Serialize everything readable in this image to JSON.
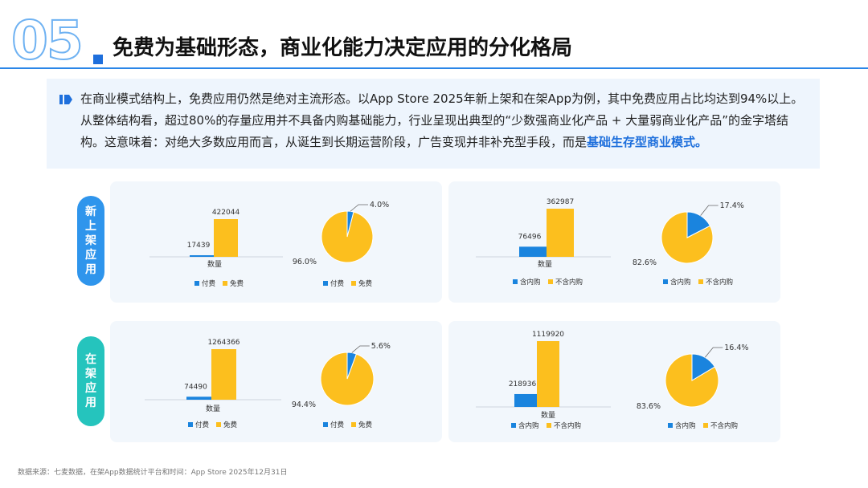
{
  "header": {
    "number": "05",
    "title": "免费为基础形态，商业化能力决定应用的分化格局"
  },
  "intro": {
    "part1": "在商业模式结构上，免费应用仍然是绝对主流形态。以App Store 2025年新上架和在架App为例，其中免费应用占比均达到94%以上。从整体结构看，超过80%的存量应用并不具备内购基础能力，行业呈现出典型的“少数强商业化产品 + 大量弱商业化产品”的金字塔结构。这意味着：对绝大多数应用而言，从诞生到长期运营阶段，广告变现并非补充型手段，而是",
    "highlight": "基础生存型商业模式。"
  },
  "rows": [
    {
      "label": "新上架应用"
    },
    {
      "label": "在架应用"
    }
  ],
  "colors": {
    "blue": "#1a84de",
    "yellow": "#fcbf1e"
  },
  "chart_data": [
    {
      "type": "bar",
      "panel": "new-paid",
      "categories": [
        "数量"
      ],
      "xlabel": "数量",
      "series": [
        {
          "name": "付费",
          "values": [
            17439
          ]
        },
        {
          "name": "免费",
          "values": [
            422044
          ]
        }
      ]
    },
    {
      "type": "pie",
      "panel": "new-paid",
      "labels": [
        "付费",
        "免费"
      ],
      "values": [
        4.0,
        96.0
      ],
      "value_labels": [
        "4.0%",
        "96.0%"
      ]
    },
    {
      "type": "bar",
      "panel": "new-iap",
      "categories": [
        "数量"
      ],
      "xlabel": "数量",
      "series": [
        {
          "name": "含内购",
          "values": [
            76496
          ]
        },
        {
          "name": "不含内购",
          "values": [
            362987
          ]
        }
      ]
    },
    {
      "type": "pie",
      "panel": "new-iap",
      "labels": [
        "含内购",
        "不含内购"
      ],
      "values": [
        17.4,
        82.6
      ],
      "value_labels": [
        "17.4%",
        "82.6%"
      ]
    },
    {
      "type": "bar",
      "panel": "live-paid",
      "categories": [
        "数量"
      ],
      "xlabel": "数量",
      "series": [
        {
          "name": "付费",
          "values": [
            74490
          ]
        },
        {
          "name": "免费",
          "values": [
            1264366
          ]
        }
      ]
    },
    {
      "type": "pie",
      "panel": "live-paid",
      "labels": [
        "付费",
        "免费"
      ],
      "values": [
        5.6,
        94.4
      ],
      "value_labels": [
        "5.6%",
        "94.4%"
      ]
    },
    {
      "type": "bar",
      "panel": "live-iap",
      "categories": [
        "数量"
      ],
      "xlabel": "数量",
      "series": [
        {
          "name": "含内购",
          "values": [
            218936
          ]
        },
        {
          "name": "不含内购",
          "values": [
            1119920
          ]
        }
      ]
    },
    {
      "type": "pie",
      "panel": "live-iap",
      "labels": [
        "含内购",
        "不含内购"
      ],
      "values": [
        16.4,
        83.6
      ],
      "value_labels": [
        "16.4%",
        "83.6%"
      ]
    }
  ],
  "footer": "数据来源：七麦数据，在架App数据统计平台和时间：App Store 2025年12月31日"
}
